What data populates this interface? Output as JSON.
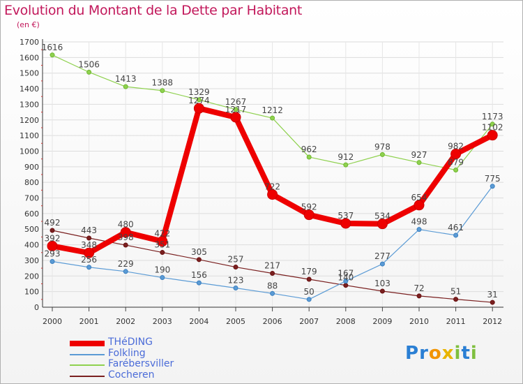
{
  "chart_data": {
    "type": "line",
    "title": "Evolution du Montant de la Dette par Habitant",
    "subtitle": "(en €)",
    "x": [
      "2000",
      "2001",
      "2002",
      "2003",
      "2004",
      "2005",
      "2006",
      "2007",
      "2008",
      "2009",
      "2010",
      "2011",
      "2012"
    ],
    "y_ticks": [
      "0",
      "100",
      "200",
      "300",
      "400",
      "500",
      "600",
      "700",
      "800",
      "900",
      "1000",
      "1100",
      "1200",
      "1300",
      "1400",
      "1500",
      "1600",
      "1700"
    ],
    "ylim": [
      0,
      1700
    ],
    "grid": true,
    "legend_position": "bottom-left",
    "series": [
      {
        "name": "THéDING",
        "color": "#ee0000",
        "values": [
          392,
          348,
          480,
          422,
          1274,
          1217,
          722,
          592,
          537,
          534,
          654,
          982,
          1102
        ]
      },
      {
        "name": "Folkling",
        "color": "#5b9bd5",
        "values": [
          293,
          256,
          229,
          190,
          156,
          123,
          88,
          50,
          167,
          277,
          498,
          461,
          775
        ]
      },
      {
        "name": "Farébersviller",
        "color": "#8fd14f",
        "values": [
          1616,
          1506,
          1413,
          1388,
          1329,
          1267,
          1212,
          962,
          912,
          978,
          927,
          879,
          1173
        ]
      },
      {
        "name": "Cocheren",
        "color": "#7a2020",
        "values": [
          492,
          443,
          398,
          351,
          305,
          257,
          217,
          179,
          140,
          103,
          72,
          51,
          31
        ]
      }
    ]
  },
  "logo": {
    "letters": [
      {
        "char": "P",
        "color": "#2a7fd4"
      },
      {
        "char": "r",
        "color": "#2a7fd4"
      },
      {
        "char": "o",
        "color": "#f29400"
      },
      {
        "char": "x",
        "color": "#e8b400"
      },
      {
        "char": "i",
        "color": "#7fbf3f"
      },
      {
        "char": "t",
        "color": "#2a7fd4"
      },
      {
        "char": "i",
        "color": "#7fbf3f"
      }
    ]
  }
}
